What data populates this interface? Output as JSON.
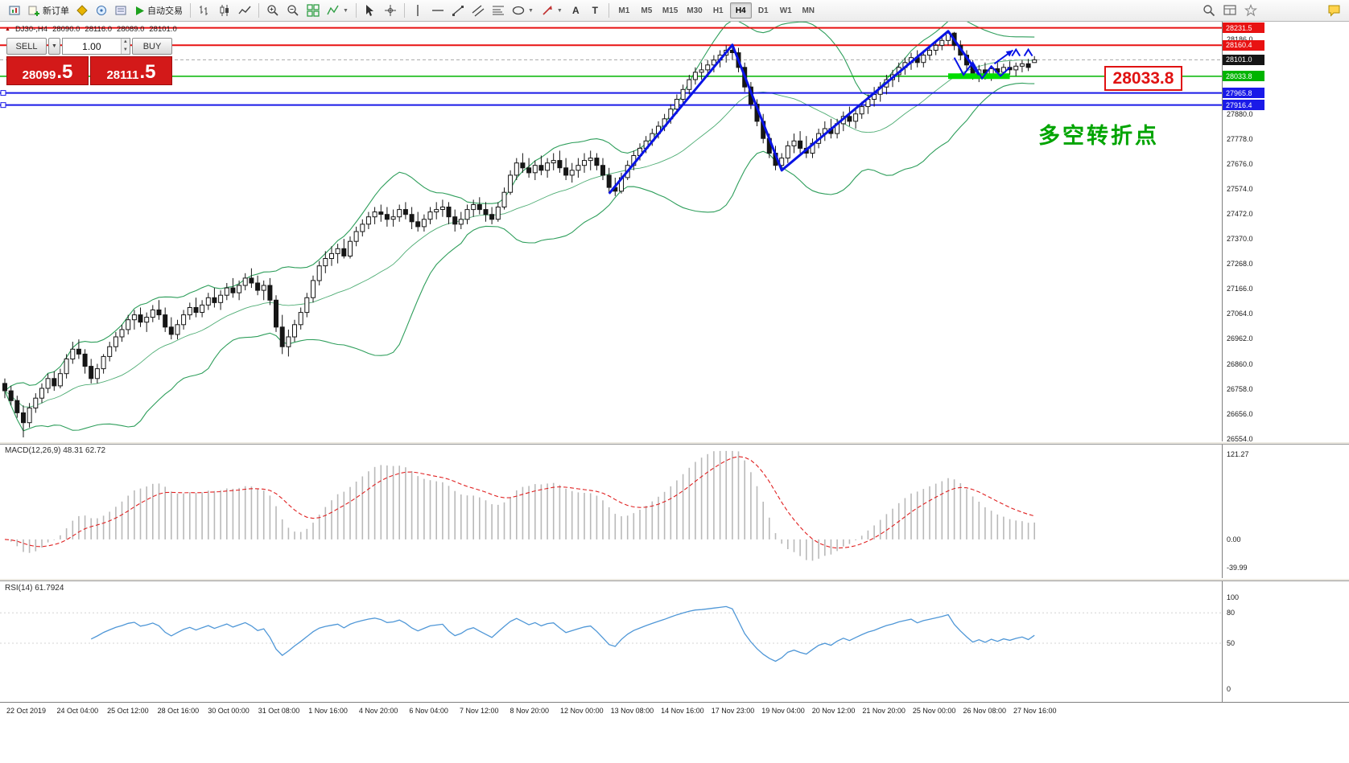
{
  "toolbar": {
    "new_order_label": "新订单",
    "auto_trading_label": "自动交易",
    "timeframes": [
      "M1",
      "M5",
      "M15",
      "M30",
      "H1",
      "H4",
      "D1",
      "W1",
      "MN"
    ],
    "active_timeframe": "H4"
  },
  "one_click": {
    "sell_label": "SELL",
    "buy_label": "BUY",
    "volume": "1.00",
    "sell_price_main": "28099",
    "sell_price_big": ".5",
    "buy_price_main": "28111",
    "buy_price_big": ".5"
  },
  "chart_header": {
    "symbol_tf": "DJ30-,H4",
    "open": "28090.0",
    "high": "28116.0",
    "low": "28089.0",
    "close": "28101.0"
  },
  "annotation_label": "多空转折点",
  "big_price_label": "28033.8",
  "panels": {
    "macd_label": "MACD(12,26,9) 48.31 62.72",
    "rsi_label": "RSI(14) 61.7924"
  },
  "chart_data": {
    "type": "candlestick",
    "symbol": "DJ30-",
    "timeframe": "H4",
    "ylim": [
      26550,
      28250
    ],
    "price_gridlines": [
      28186.0,
      27880.0,
      27778.0,
      27676.0,
      27574.0,
      27472.0,
      27370.0,
      27268.0,
      27166.0,
      27064.0,
      26962.0,
      26860.0,
      26758.0,
      26656.0,
      26554.0
    ],
    "price_tags": [
      {
        "value": 28231.5,
        "color": "#e81212"
      },
      {
        "value": 28160.4,
        "color": "#e81212"
      },
      {
        "value": 28101.0,
        "color": "#151515"
      },
      {
        "value": 28033.8,
        "color": "#00b400"
      },
      {
        "value": 27965.8,
        "color": "#1a1ae8"
      },
      {
        "value": 27916.4,
        "color": "#1a1ae8"
      }
    ],
    "hlines": [
      {
        "price": 28231.5,
        "color": "#e81212",
        "width": 2
      },
      {
        "price": 28160.4,
        "color": "#e81212",
        "width": 2
      },
      {
        "price": 28101.0,
        "color": "#a8a8a8",
        "width": 1,
        "dash": true
      },
      {
        "price": 28033.8,
        "color": "#00b400",
        "width": 1.5
      },
      {
        "price": 27965.8,
        "color": "#1a1ae8",
        "width": 2,
        "handles": true
      },
      {
        "price": 27916.4,
        "color": "#1a1ae8",
        "width": 2,
        "handles": true
      }
    ],
    "support_bar": {
      "from": 153,
      "to": 163,
      "price": 28034,
      "color": "#00dd00"
    },
    "annotations": {
      "zigzag": [
        [
          98,
          27555
        ],
        [
          118,
          28162
        ],
        [
          126,
          27650
        ],
        [
          153,
          28218
        ],
        [
          158,
          28040
        ]
      ],
      "squiggle": [
        [
          154,
          28110
        ],
        [
          155.5,
          28040
        ],
        [
          157,
          28090
        ],
        [
          158.5,
          28025
        ],
        [
          160,
          28075
        ],
        [
          161.5,
          28035
        ],
        [
          163,
          28070
        ]
      ],
      "arrow": {
        "from": [
          160.5,
          28085
        ],
        "to": [
          163.5,
          28140
        ]
      },
      "carets": [
        [
          164,
          28130
        ],
        [
          166,
          28130
        ]
      ]
    },
    "indicators": {
      "bollinger": {
        "period": 20,
        "deviation": 2,
        "color": "#2e9e5b"
      },
      "macd": {
        "fast": 12,
        "slow": 26,
        "signal": 9,
        "value": 48.31,
        "signal_value": 62.72
      },
      "rsi": {
        "period": 14,
        "value": 61.7924
      }
    },
    "macd_axis_labels": [
      121.27,
      0.0,
      -39.99
    ],
    "macd_range": [
      -55,
      135
    ],
    "rsi_axis_labels": [
      100,
      80,
      50,
      0
    ],
    "rsi_levels": [
      80,
      50
    ],
    "time_labels": [
      "22 Oct 2019",
      "24 Oct 04:00",
      "25 Oct 12:00",
      "28 Oct 16:00",
      "30 Oct 00:00",
      "31 Oct 08:00",
      "1 Nov 16:00",
      "4 Nov 20:00",
      "6 Nov 04:00",
      "7 Nov 12:00",
      "8 Nov 20:00",
      "12 Nov 00:00",
      "13 Nov 08:00",
      "14 Nov 16:00",
      "17 Nov 23:00",
      "19 Nov 04:00",
      "20 Nov 12:00",
      "21 Nov 20:00",
      "25 Nov 00:00",
      "26 Nov 08:00",
      "27 Nov 16:00"
    ],
    "candles": [
      [
        26780,
        26800,
        26720,
        26750
      ],
      [
        26750,
        26770,
        26690,
        26710
      ],
      [
        26710,
        26730,
        26640,
        26660
      ],
      [
        26660,
        26690,
        26560,
        26620
      ],
      [
        26620,
        26700,
        26600,
        26680
      ],
      [
        26680,
        26740,
        26660,
        26720
      ],
      [
        26720,
        26780,
        26700,
        26760
      ],
      [
        26760,
        26820,
        26740,
        26800
      ],
      [
        26800,
        26830,
        26750,
        26770
      ],
      [
        26770,
        26840,
        26760,
        26820
      ],
      [
        26820,
        26900,
        26800,
        26880
      ],
      [
        26880,
        26950,
        26860,
        26920
      ],
      [
        26920,
        26960,
        26880,
        26900
      ],
      [
        26900,
        26920,
        26820,
        26850
      ],
      [
        26850,
        26880,
        26780,
        26800
      ],
      [
        26800,
        26860,
        26780,
        26840
      ],
      [
        26840,
        26900,
        26820,
        26890
      ],
      [
        26890,
        26950,
        26870,
        26930
      ],
      [
        26930,
        26990,
        26910,
        26970
      ],
      [
        26970,
        27020,
        26950,
        27000
      ],
      [
        27000,
        27060,
        26980,
        27040
      ],
      [
        27040,
        27080,
        27000,
        27060
      ],
      [
        27060,
        27090,
        27010,
        27030
      ],
      [
        27030,
        27070,
        26990,
        27050
      ],
      [
        27050,
        27100,
        27030,
        27080
      ],
      [
        27080,
        27120,
        27040,
        27060
      ],
      [
        27060,
        27090,
        26990,
        27010
      ],
      [
        27010,
        27050,
        26960,
        26980
      ],
      [
        26980,
        27040,
        26960,
        27020
      ],
      [
        27020,
        27080,
        27000,
        27060
      ],
      [
        27060,
        27110,
        27040,
        27090
      ],
      [
        27090,
        27130,
        27050,
        27070
      ],
      [
        27070,
        27120,
        27050,
        27100
      ],
      [
        27100,
        27150,
        27080,
        27130
      ],
      [
        27130,
        27170,
        27090,
        27110
      ],
      [
        27110,
        27160,
        27080,
        27140
      ],
      [
        27140,
        27190,
        27120,
        27170
      ],
      [
        27170,
        27210,
        27130,
        27150
      ],
      [
        27150,
        27200,
        27120,
        27180
      ],
      [
        27180,
        27230,
        27160,
        27210
      ],
      [
        27210,
        27250,
        27170,
        27190
      ],
      [
        27190,
        27220,
        27140,
        27160
      ],
      [
        27160,
        27200,
        27120,
        27180
      ],
      [
        27180,
        27210,
        27100,
        27120
      ],
      [
        27120,
        27140,
        26990,
        27010
      ],
      [
        27010,
        27060,
        26900,
        26930
      ],
      [
        26930,
        27000,
        26890,
        26970
      ],
      [
        26970,
        27040,
        26950,
        27020
      ],
      [
        27020,
        27090,
        27000,
        27070
      ],
      [
        27070,
        27150,
        27050,
        27130
      ],
      [
        27130,
        27220,
        27110,
        27200
      ],
      [
        27200,
        27280,
        27180,
        27260
      ],
      [
        27260,
        27320,
        27230,
        27290
      ],
      [
        27290,
        27340,
        27260,
        27310
      ],
      [
        27310,
        27350,
        27270,
        27330
      ],
      [
        27330,
        27370,
        27290,
        27300
      ],
      [
        27300,
        27380,
        27290,
        27360
      ],
      [
        27360,
        27420,
        27340,
        27400
      ],
      [
        27400,
        27450,
        27380,
        27430
      ],
      [
        27430,
        27480,
        27410,
        27460
      ],
      [
        27460,
        27500,
        27430,
        27480
      ],
      [
        27480,
        27510,
        27440,
        27470
      ],
      [
        27470,
        27500,
        27420,
        27450
      ],
      [
        27450,
        27490,
        27420,
        27460
      ],
      [
        27460,
        27510,
        27440,
        27490
      ],
      [
        27490,
        27520,
        27450,
        27470
      ],
      [
        27470,
        27500,
        27410,
        27440
      ],
      [
        27440,
        27480,
        27400,
        27420
      ],
      [
        27420,
        27470,
        27400,
        27450
      ],
      [
        27450,
        27500,
        27430,
        27480
      ],
      [
        27480,
        27520,
        27450,
        27490
      ],
      [
        27490,
        27530,
        27460,
        27500
      ],
      [
        27500,
        27520,
        27430,
        27460
      ],
      [
        27460,
        27490,
        27400,
        27430
      ],
      [
        27430,
        27480,
        27410,
        27450
      ],
      [
        27450,
        27510,
        27430,
        27490
      ],
      [
        27490,
        27530,
        27460,
        27510
      ],
      [
        27510,
        27540,
        27470,
        27490
      ],
      [
        27490,
        27520,
        27440,
        27470
      ],
      [
        27470,
        27500,
        27430,
        27450
      ],
      [
        27450,
        27520,
        27440,
        27500
      ],
      [
        27500,
        27580,
        27490,
        27560
      ],
      [
        27560,
        27650,
        27550,
        27630
      ],
      [
        27630,
        27700,
        27610,
        27680
      ],
      [
        27680,
        27720,
        27640,
        27660
      ],
      [
        27660,
        27700,
        27620,
        27640
      ],
      [
        27640,
        27690,
        27610,
        27670
      ],
      [
        27670,
        27710,
        27630,
        27650
      ],
      [
        27650,
        27700,
        27620,
        27680
      ],
      [
        27680,
        27720,
        27650,
        27690
      ],
      [
        27690,
        27730,
        27640,
        27660
      ],
      [
        27660,
        27700,
        27610,
        27630
      ],
      [
        27630,
        27680,
        27600,
        27650
      ],
      [
        27650,
        27700,
        27620,
        27670
      ],
      [
        27670,
        27720,
        27640,
        27690
      ],
      [
        27690,
        27730,
        27650,
        27700
      ],
      [
        27700,
        27720,
        27650,
        27670
      ],
      [
        27670,
        27700,
        27610,
        27630
      ],
      [
        27630,
        27660,
        27560,
        27580
      ],
      [
        27580,
        27620,
        27545,
        27565
      ],
      [
        27565,
        27640,
        27555,
        27620
      ],
      [
        27620,
        27690,
        27610,
        27670
      ],
      [
        27670,
        27730,
        27650,
        27710
      ],
      [
        27710,
        27760,
        27690,
        27740
      ],
      [
        27740,
        27790,
        27720,
        27770
      ],
      [
        27770,
        27820,
        27750,
        27800
      ],
      [
        27800,
        27850,
        27780,
        27830
      ],
      [
        27830,
        27880,
        27810,
        27860
      ],
      [
        27860,
        27920,
        27840,
        27900
      ],
      [
        27900,
        27960,
        27880,
        27940
      ],
      [
        27940,
        28000,
        27920,
        27980
      ],
      [
        27980,
        28040,
        27960,
        28020
      ],
      [
        28020,
        28070,
        28000,
        28050
      ],
      [
        28050,
        28090,
        28020,
        28060
      ],
      [
        28060,
        28100,
        28030,
        28080
      ],
      [
        28080,
        28120,
        28050,
        28100
      ],
      [
        28100,
        28140,
        28070,
        28120
      ],
      [
        28120,
        28160,
        28090,
        28140
      ],
      [
        28140,
        28165,
        28100,
        28130
      ],
      [
        28130,
        28150,
        28050,
        28070
      ],
      [
        28070,
        28090,
        27970,
        27990
      ],
      [
        27990,
        28010,
        27900,
        27920
      ],
      [
        27920,
        27940,
        27830,
        27850
      ],
      [
        27850,
        27880,
        27760,
        27780
      ],
      [
        27780,
        27800,
        27700,
        27720
      ],
      [
        27720,
        27750,
        27650,
        27670
      ],
      [
        27670,
        27720,
        27645,
        27700
      ],
      [
        27700,
        27770,
        27680,
        27750
      ],
      [
        27750,
        27800,
        27720,
        27770
      ],
      [
        27770,
        27810,
        27720,
        27740
      ],
      [
        27740,
        27790,
        27700,
        27720
      ],
      [
        27720,
        27780,
        27700,
        27760
      ],
      [
        27760,
        27820,
        27740,
        27800
      ],
      [
        27800,
        27850,
        27770,
        27820
      ],
      [
        27820,
        27860,
        27780,
        27800
      ],
      [
        27800,
        27860,
        27780,
        27840
      ],
      [
        27840,
        27890,
        27810,
        27870
      ],
      [
        27870,
        27910,
        27830,
        27850
      ],
      [
        27850,
        27900,
        27820,
        27880
      ],
      [
        27880,
        27930,
        27860,
        27910
      ],
      [
        27910,
        27960,
        27880,
        27940
      ],
      [
        27940,
        27990,
        27910,
        27960
      ],
      [
        27960,
        28010,
        27930,
        27990
      ],
      [
        27990,
        28040,
        27960,
        28020
      ],
      [
        28020,
        28060,
        27990,
        28040
      ],
      [
        28040,
        28090,
        28010,
        28070
      ],
      [
        28070,
        28110,
        28040,
        28090
      ],
      [
        28090,
        28130,
        28060,
        28110
      ],
      [
        28110,
        28140,
        28070,
        28090
      ],
      [
        28090,
        28140,
        28070,
        28120
      ],
      [
        28120,
        28160,
        28100,
        28140
      ],
      [
        28140,
        28180,
        28120,
        28160
      ],
      [
        28160,
        28200,
        28140,
        28180
      ],
      [
        28180,
        28220,
        28160,
        28210
      ],
      [
        28210,
        28215,
        28140,
        28160
      ],
      [
        28160,
        28180,
        28100,
        28120
      ],
      [
        28120,
        28140,
        28060,
        28080
      ],
      [
        28080,
        28100,
        28020,
        28040
      ],
      [
        28040,
        28080,
        28010,
        28060
      ],
      [
        28060,
        28090,
        28020,
        28040
      ],
      [
        28040,
        28075,
        28015,
        28065
      ],
      [
        28065,
        28090,
        28030,
        28050
      ],
      [
        28050,
        28085,
        28025,
        28070
      ],
      [
        28070,
        28095,
        28040,
        28060
      ],
      [
        28060,
        28090,
        28035,
        28075
      ],
      [
        28075,
        28100,
        28050,
        28085
      ],
      [
        28085,
        28105,
        28055,
        28070
      ],
      [
        28090,
        28116,
        28089,
        28101
      ]
    ]
  }
}
